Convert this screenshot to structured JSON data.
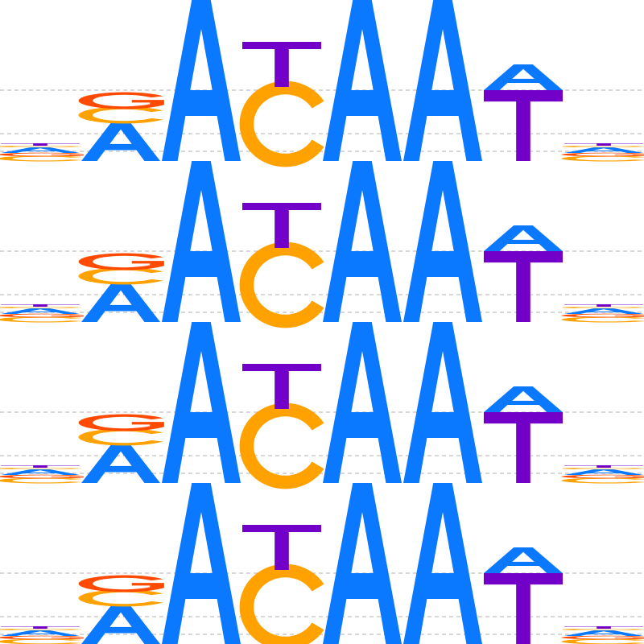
{
  "colors": {
    "A": "#0a78ff",
    "C": "#ffa200",
    "G": "#ff4a00",
    "T": "#7200c8",
    "gridline": "#b0b0b0",
    "background": "#ffffff"
  },
  "repeat_count": 4,
  "positions": [
    {
      "index": 1,
      "letters": [
        {
          "char": "C",
          "height": 0.03
        },
        {
          "char": "G",
          "height": 0.02
        },
        {
          "char": "A",
          "height": 0.035
        },
        {
          "char": "C",
          "height": 0.01
        },
        {
          "char": "T",
          "height": 0.015
        }
      ]
    },
    {
      "index": 2,
      "letters": [
        {
          "char": "A",
          "height": 0.24
        },
        {
          "char": "C",
          "height": 0.09
        },
        {
          "char": "G",
          "height": 0.09
        }
      ]
    },
    {
      "index": 3,
      "letters": [
        {
          "char": "A",
          "height": 1.0
        }
      ]
    },
    {
      "index": 4,
      "letters": [
        {
          "char": "C",
          "height": 0.46
        },
        {
          "char": "T",
          "height": 0.28
        }
      ]
    },
    {
      "index": 5,
      "letters": [
        {
          "char": "A",
          "height": 1.0
        }
      ]
    },
    {
      "index": 6,
      "letters": [
        {
          "char": "A",
          "height": 1.0
        }
      ]
    },
    {
      "index": 7,
      "letters": [
        {
          "char": "T",
          "height": 0.44
        },
        {
          "char": "A",
          "height": 0.16
        }
      ]
    },
    {
      "index": 8,
      "letters": [
        {
          "char": "C",
          "height": 0.03
        },
        {
          "char": "G",
          "height": 0.02
        },
        {
          "char": "A",
          "height": 0.035
        },
        {
          "char": "C",
          "height": 0.01
        },
        {
          "char": "T",
          "height": 0.015
        }
      ]
    }
  ],
  "gridline_levels": [
    0.06,
    0.17,
    0.44
  ]
}
